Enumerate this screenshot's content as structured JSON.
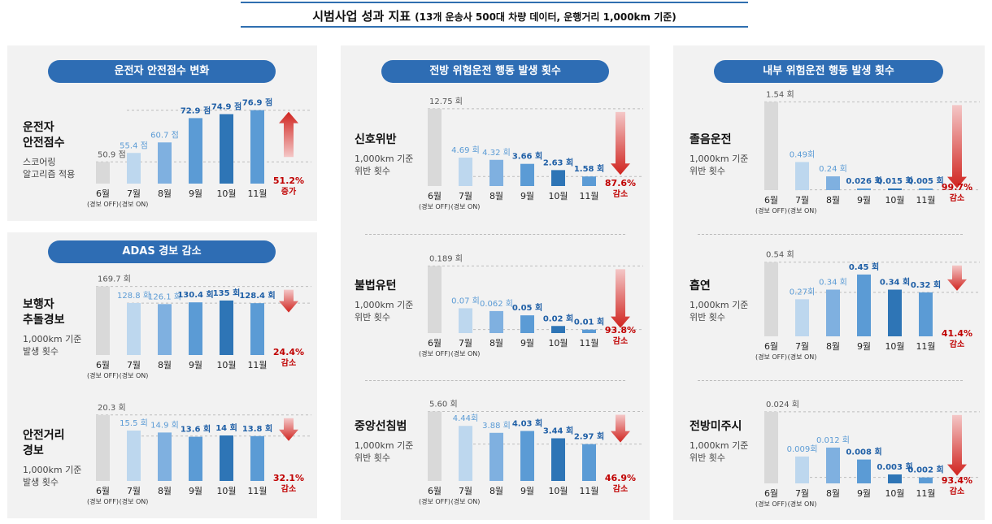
{
  "header": {
    "title": "시범사업 성과 지표",
    "subtitle": "(13개 운송사 500대 차량 데이터, 운행거리 1,000km 기준)"
  },
  "sections": [
    {
      "id": "driver-score",
      "label": "운전자 안전점수 변화"
    },
    {
      "id": "adas",
      "label": "ADAS 경보 감소"
    },
    {
      "id": "forward",
      "label": "전방 위험운전 행동 발생 횟수"
    },
    {
      "id": "internal",
      "label": "내부 위험운전 행동 발생 횟수"
    }
  ],
  "colors": {
    "off_bar": "#d9d9d9",
    "light": "#bdd7ee",
    "mid": "#7fb0e0",
    "strong": "#5b9bd5",
    "dark": "#2e75b6",
    "value_off": "#555555",
    "value_light": "#5b9bd5",
    "value_dark": "#1f5fa6",
    "change": "#c00000",
    "pill": "#2e6db4"
  },
  "chart_data": [
    {
      "id": "safety-score",
      "type": "bar",
      "name": "운전자\n안전점수",
      "desc": "스코어링\n알고리즘 적용",
      "categories": [
        "6월",
        "7월",
        "8월",
        "9월",
        "10월",
        "11월"
      ],
      "notes": [
        "(경보 OFF)",
        "(경보 ON)",
        "",
        "",
        "",
        ""
      ],
      "values": [
        50.9,
        55.4,
        60.7,
        72.9,
        74.9,
        76.9
      ],
      "labels": [
        "50.9 점",
        "55.4 점",
        "60.7 점",
        "72.9 점",
        "74.9 점",
        "76.9 점"
      ],
      "ylim": [
        40,
        80
      ],
      "change": "51.2%",
      "change_word": "증가",
      "direction": "up"
    },
    {
      "id": "pedestrian",
      "type": "bar",
      "name": "보행자\n추돌경보",
      "desc": "1,000km 기준\n발생 횟수",
      "categories": [
        "6월",
        "7월",
        "8월",
        "9월",
        "10월",
        "11월"
      ],
      "notes": [
        "(경보 OFF)",
        "(경보 ON)",
        "",
        "",
        "",
        ""
      ],
      "values": [
        169.7,
        128.8,
        126.1,
        130.4,
        135,
        128.4
      ],
      "labels": [
        "169.7 회",
        "128.8 회",
        "126.1 회",
        "130.4 회",
        "135 회",
        "128.4 회"
      ],
      "ylim": [
        0,
        175
      ],
      "change": "24.4%",
      "change_word": "감소",
      "direction": "down"
    },
    {
      "id": "distance",
      "type": "bar",
      "name": "안전거리\n경보",
      "desc": "1,000km 기준\n발생 횟수",
      "categories": [
        "6월",
        "7월",
        "8월",
        "9월",
        "10월",
        "11월"
      ],
      "notes": [
        "(경보 OFF)",
        "(경보 ON)",
        "",
        "",
        "",
        ""
      ],
      "values": [
        20.3,
        15.5,
        14.9,
        13.6,
        14,
        13.8
      ],
      "labels": [
        "20.3 회",
        "15.5 회",
        "14.9 회",
        "13.6 회",
        "14 회",
        "13.8 회"
      ],
      "ylim": [
        0,
        21
      ],
      "change": "32.1%",
      "change_word": "감소",
      "direction": "down"
    },
    {
      "id": "signal",
      "type": "bar",
      "name": "신호위반",
      "desc": "1,000km 기준\n위반 횟수",
      "categories": [
        "6월",
        "7월",
        "8월",
        "9월",
        "10월",
        "11월"
      ],
      "notes": [
        "(경보 OFF)",
        "(경보 ON)",
        "",
        "",
        "",
        ""
      ],
      "values": [
        12.75,
        4.69,
        4.32,
        3.66,
        2.63,
        1.58
      ],
      "labels": [
        "12.75 회",
        "4.69 회",
        "4.32 회",
        "3.66 회",
        "2.63 회",
        "1.58 회"
      ],
      "ylim": [
        0,
        13
      ],
      "change": "87.6%",
      "change_word": "감소",
      "direction": "down"
    },
    {
      "id": "uturn",
      "type": "bar",
      "name": "불법유턴",
      "desc": "1,000km 기준\n위반 횟수",
      "categories": [
        "6월",
        "7월",
        "8월",
        "9월",
        "10월",
        "11월"
      ],
      "notes": [
        "(경보 OFF)",
        "(경보 ON)",
        "",
        "",
        "",
        ""
      ],
      "values": [
        0.189,
        0.07,
        0.062,
        0.05,
        0.02,
        0.01
      ],
      "labels": [
        "0.189 회",
        "0.07 회",
        "0.062 회",
        "0.05 회",
        "0.02 회",
        "0.01 회"
      ],
      "ylim": [
        0,
        0.19
      ],
      "change": "93.8%",
      "change_word": "감소",
      "direction": "down"
    },
    {
      "id": "centerline",
      "type": "bar",
      "name": "중앙선침범",
      "desc": "1,000km 기준\n위반 횟수",
      "categories": [
        "6월",
        "7월",
        "8월",
        "9월",
        "10월",
        "11월"
      ],
      "notes": [
        "(경보 OFF)",
        "(경보 ON)",
        "",
        "",
        "",
        ""
      ],
      "values": [
        5.6,
        4.44,
        3.88,
        4.03,
        3.44,
        2.97
      ],
      "labels": [
        "5.60 회",
        "4.44회",
        "3.88 회",
        "4.03 회",
        "3.44 회",
        "2.97 회"
      ],
      "ylim": [
        0,
        5.7
      ],
      "change": "46.9%",
      "change_word": "감소",
      "direction": "down"
    },
    {
      "id": "drowsy",
      "type": "bar",
      "name": "졸음운전",
      "desc": "1,000km 기준\n위반 횟수",
      "categories": [
        "6월",
        "7월",
        "8월",
        "9월",
        "10월",
        "11월"
      ],
      "notes": [
        "(경보 OFF)",
        "(경보 ON)",
        "",
        "",
        "",
        ""
      ],
      "values": [
        1.54,
        0.49,
        0.24,
        0.026,
        0.015,
        0.005
      ],
      "labels": [
        "1.54 회",
        "0.49회",
        "0.24 회",
        "0.026 회",
        "0.015 회",
        "0.005 회"
      ],
      "ylim": [
        0,
        1.56
      ],
      "change": "99.7%",
      "change_word": "감소",
      "direction": "down"
    },
    {
      "id": "smoking",
      "type": "bar",
      "name": "흡연",
      "desc": "1,000km 기준\n위반 횟수",
      "categories": [
        "6월",
        "7월",
        "8월",
        "9월",
        "10월",
        "11월"
      ],
      "notes": [
        "(경보 OFF)",
        "(경보 ON)",
        "",
        "",
        "",
        ""
      ],
      "values": [
        0.54,
        0.27,
        0.34,
        0.45,
        0.34,
        0.32
      ],
      "labels": [
        "0.54 회",
        "0.27회",
        "0.34 회",
        "0.45 회",
        "0.34 회",
        "0.32 회"
      ],
      "ylim": [
        0,
        0.55
      ],
      "change": "41.4%",
      "change_word": "감소",
      "direction": "down"
    },
    {
      "id": "forward-gaze",
      "type": "bar",
      "name": "전방미주시",
      "desc": "1,000km 기준\n위반 횟수",
      "categories": [
        "6월",
        "7월",
        "8월",
        "9월",
        "10월",
        "11월"
      ],
      "notes": [
        "(경보 OFF)",
        "(경보 ON)",
        "",
        "",
        "",
        ""
      ],
      "values": [
        0.024,
        0.009,
        0.012,
        0.008,
        0.003,
        0.002
      ],
      "labels": [
        "0.024 회",
        "0.009회",
        "0.012 회",
        "0.008 회",
        "0.003 회",
        "0.002 회"
      ],
      "ylim": [
        0,
        0.0245
      ],
      "change": "93.4%",
      "change_word": "감소",
      "direction": "down"
    }
  ]
}
